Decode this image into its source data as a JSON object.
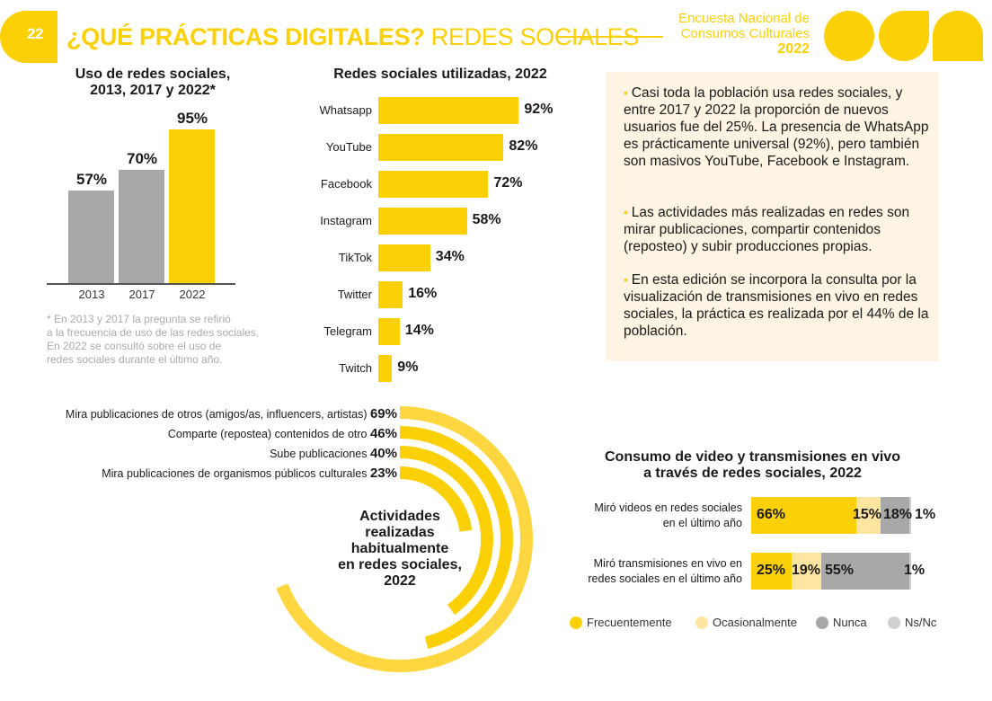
{
  "header": {
    "page_number": "22",
    "title_bold": "¿QUÉ PRÁCTICAS DIGITALES?",
    "title_regular": " REDES SOCIALES",
    "survey_line1": "Encuesta Nacional de",
    "survey_line2": "Consumos Culturales",
    "survey_year": "2022"
  },
  "colors": {
    "accent": "#FCD006",
    "accent_light": "#FFE5A0",
    "gray": "#A8A8A8",
    "gray_light": "#D0D0D0",
    "panel_bg": "#FDF4E3"
  },
  "insights": [
    "Casi toda la población usa redes sociales, y entre 2017 y 2022 la proporción de nuevos usuarios fue del 25%. La presencia de WhatsApp es prácticamente universal (92%), pero también son masivos YouTube, Facebook e Instagram.",
    " Las actividades más realizadas en redes son mirar publicaciones, compartir contenidos (reposteo) y subir producciones propias.",
    "En esta edición se incorpora la consulta por la visualización de transmisiones en vivo en redes sociales, la práctica es realizada por el 44% de la población."
  ],
  "chart_data": [
    {
      "type": "bar",
      "title": "Uso de redes sociales, 2013, 2017 y 2022*",
      "categories": [
        "2013",
        "2017",
        "2022"
      ],
      "values": [
        57,
        70,
        95
      ],
      "labels": [
        "57%",
        "70%",
        "95%"
      ],
      "highlight": [
        false,
        false,
        true
      ],
      "ylim": [
        0,
        100
      ],
      "note": "* En 2013 y 2017 la pregunta se refirió a la frecuencia de uso de las redes sociales. En 2022 se consultó sobre el uso de redes sociales durante el último año.",
      "note_lines": [
        "* En 2013 y 2017 la pregunta se refirió",
        "a la frecuencia de uso de las redes sociales.",
        "En 2022 se consultó sobre el uso de",
        "redes sociales durante el último año."
      ]
    },
    {
      "type": "bar",
      "orientation": "horizontal",
      "title": "Redes sociales utilizadas, 2022",
      "categories": [
        "Whatsapp",
        "YouTube",
        "Facebook",
        "Instagram",
        "TikTok",
        "Twitter",
        "Telegram",
        "Twitch"
      ],
      "values": [
        92,
        82,
        72,
        58,
        34,
        16,
        14,
        9
      ],
      "labels": [
        "92%",
        "82%",
        "72%",
        "58%",
        "34%",
        "16%",
        "14%",
        "9%"
      ],
      "xlim": [
        0,
        100
      ]
    },
    {
      "type": "bar",
      "orientation": "radial",
      "title": "Actividades realizadas habitualmente en redes sociales, 2022",
      "title_lines": [
        "Actividades",
        "realizadas",
        "habitualmente",
        "en redes sociales,",
        "2022"
      ],
      "categories": [
        "Mira publicaciones de otros (amigos/as, influencers, artistas)",
        "Comparte (repostea) contenidos de otro",
        "Sube publicaciones",
        "Mira publicaciones de organismos públicos culturales"
      ],
      "values": [
        69,
        46,
        40,
        23
      ],
      "labels": [
        "69%",
        "46%",
        "40%",
        "23%"
      ],
      "range": [
        0,
        100
      ]
    },
    {
      "type": "bar",
      "orientation": "horizontal-stacked",
      "title": "Consumo de video y  transmisiones en vivo a través de redes sociales, 2022",
      "title_lines": [
        "Consumo de video y  transmisiones en vivo",
        "a través de redes sociales, 2022"
      ],
      "categories": [
        [
          "Miró videos en redes sociales",
          "en el último año"
        ],
        [
          "Miró transmisiones en vivo en",
          "redes sociales en el último año"
        ]
      ],
      "series": [
        {
          "name": "Frecuentemente",
          "values": [
            66,
            25
          ],
          "labels": [
            "66%",
            "25%"
          ]
        },
        {
          "name": "Ocasionalmente",
          "values": [
            15,
            19
          ],
          "labels": [
            "15%",
            "19%"
          ]
        },
        {
          "name": "Nunca",
          "values": [
            18,
            55
          ],
          "labels": [
            "18%",
            "55%"
          ]
        },
        {
          "name": "Ns/Nc",
          "values": [
            1,
            1
          ],
          "labels": [
            "1%",
            "1%"
          ]
        }
      ],
      "legend": "bottom"
    }
  ]
}
